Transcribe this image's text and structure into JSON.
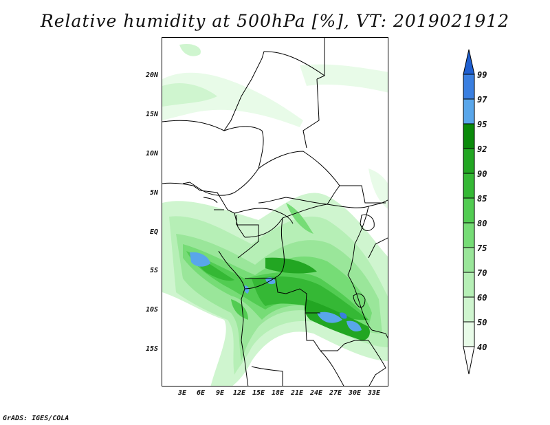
{
  "title": "Relative humidity at 500hPa [%], VT: 2019021912",
  "credit": "GrADS: IGES/COLA",
  "lat_labels": [
    "20N",
    "15N",
    "10N",
    "5N",
    "EQ",
    "5S",
    "10S",
    "15S"
  ],
  "lon_labels": [
    "3E",
    "6E",
    "9E",
    "12E",
    "15E",
    "18E",
    "21E",
    "24E",
    "27E",
    "30E",
    "33E"
  ],
  "colorbar": {
    "levels": [
      "99",
      "97",
      "95",
      "92",
      "90",
      "85",
      "80",
      "75",
      "70",
      "60",
      "50",
      "40"
    ],
    "colors": [
      "#1f5fd0",
      "#3a7fe0",
      "#59a6ea",
      "#0a8a0a",
      "#22a622",
      "#35b835",
      "#52cc52",
      "#76dc76",
      "#9ae69a",
      "#b6efb6",
      "#cff5cf",
      "#e8fbe8"
    ]
  }
}
